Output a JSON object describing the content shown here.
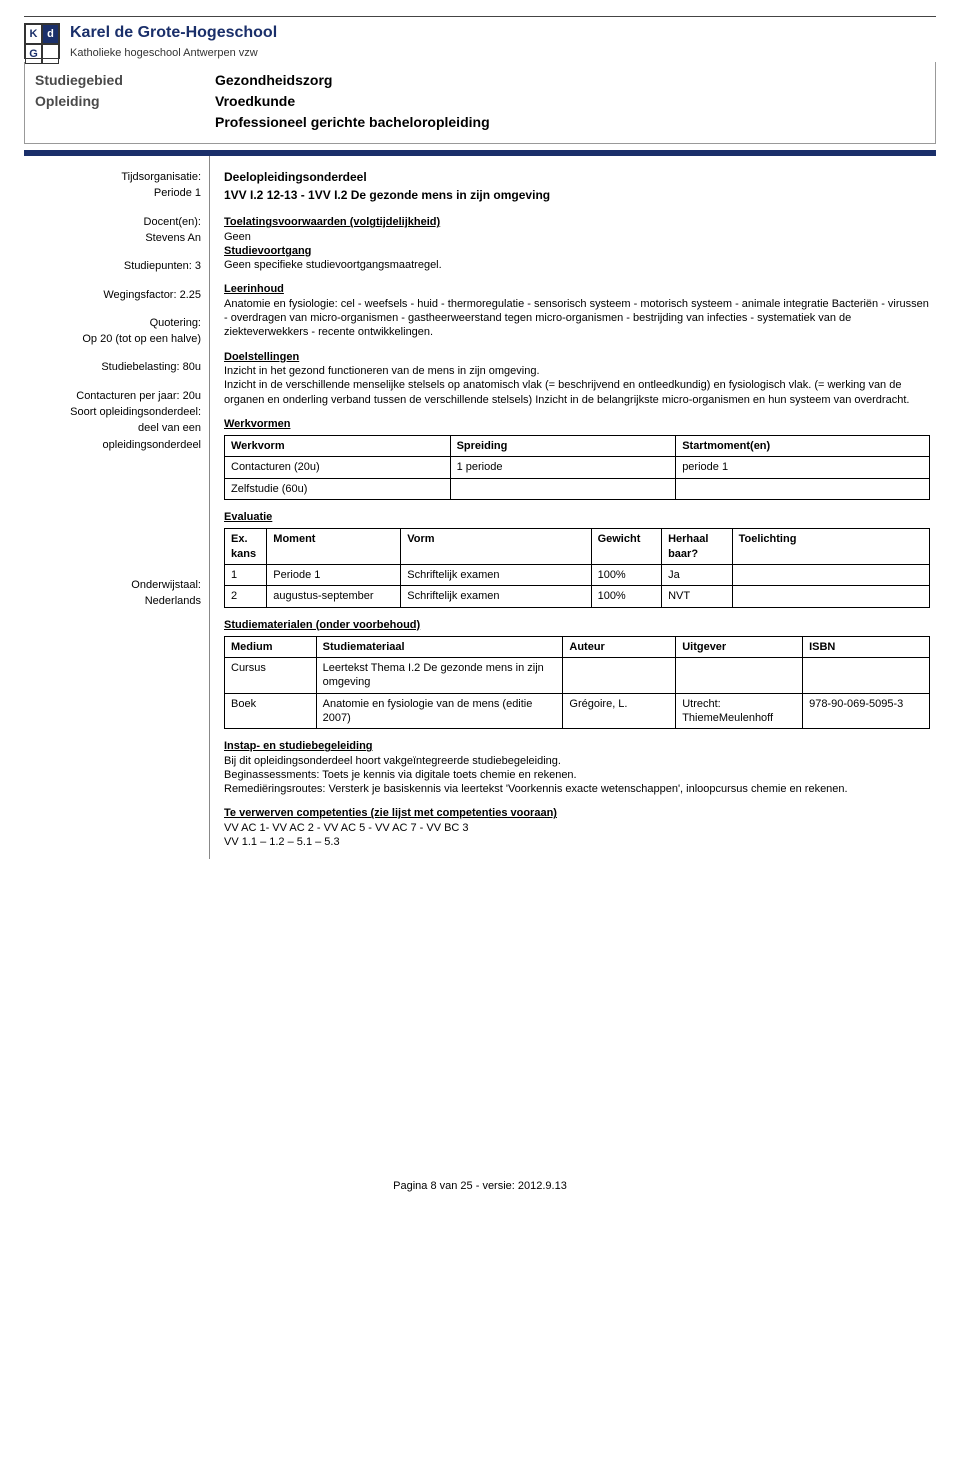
{
  "header": {
    "institution": "Karel de Grote-Hogeschool",
    "subtitle": "Katholieke hogeschool Antwerpen vzw",
    "logo_letters": [
      "K",
      "d",
      "G",
      ""
    ],
    "divider_color": "#1a2f6a"
  },
  "topblock": {
    "left_labels": [
      "Studiegebied",
      "Opleiding"
    ],
    "right_values": [
      "Gezondheidszorg",
      "Vroedkunde",
      "Professioneel gerichte bacheloropleiding"
    ]
  },
  "left": {
    "tijdsorg_label": "Tijdsorganisatie:",
    "periode": "Periode 1",
    "docent_label": "Docent(en):",
    "docent": "Stevens An",
    "studiepunten": "Studiepunten: 3",
    "wegingsfactor": "Wegingsfactor: 2.25",
    "quotering_label": "Quotering:",
    "quotering": "Op 20 (tot op een halve)",
    "studiebelasting": "Studiebelasting: 80u",
    "contacturen": "Contacturen per jaar:  20u",
    "soort_label": "Soort opleidingsonderdeel:",
    "soort1": "deel van een",
    "soort2": "opleidingsonderdeel",
    "onderwijstaal_label": "Onderwijstaal:",
    "onderwijstaal": "Nederlands"
  },
  "main": {
    "deel_label": "Deelopleidingsonderdeel",
    "course_code": "1VV I.2 12-13 - 1VV I.2 De gezonde mens in zijn omgeving",
    "toelating_label": "Toelatingsvoorwaarden (volgtijdelijkheid)",
    "toelating_text": "Geen",
    "studievoortgang_label": "Studievoortgang",
    "studievoortgang_text": "Geen specifieke studievoortgangsmaatregel.",
    "leerinhoud_label": "Leerinhoud",
    "leerinhoud_text": "Anatomie en fysiologie: cel - weefsels - huid - thermoregulatie - sensorisch systeem - motorisch systeem - animale integratie Bacteriën - virussen - overdragen van micro-organismen - gastheerweerstand tegen micro-organismen - bestrijding van infecties - systematiek van de ziekteverwekkers - recente ontwikkelingen.",
    "doelstellingen_label": "Doelstellingen",
    "doelstellingen_text": "Inzicht in het gezond functioneren van de mens in zijn omgeving.\nInzicht in de verschillende menselijke stelsels op anatomisch vlak (= beschrijvend en ontleedkundig) en fysiologisch vlak. (= werking van de organen en onderling verband tussen de verschillende stelsels) Inzicht in de belangrijkste micro-organismen en hun systeem van overdracht.",
    "werkvormen_label": "Werkvormen",
    "evaluatie_label": "Evaluatie",
    "studiemat_label": "Studiematerialen (onder voorbehoud)",
    "instap_label": "Instap- en studiebegeleiding",
    "instap_text": "Bij dit opleidingsonderdeel hoort vakgeïntegreerde studiebegeleiding.\nBeginassessments: Toets je kennis via digitale toets chemie en rekenen.\nRemediëringsroutes: Versterk je basiskennis via leertekst 'Voorkennis exacte wetenschappen', inloopcursus chemie en rekenen.",
    "comp_label": "Te verwerven competenties (zie lijst met competenties vooraan)",
    "comp_text1": "VV AC 1- VV AC 2 - VV AC 5 - VV AC 7 - VV BC 3",
    "comp_text2": "VV 1.1 – 1.2 – 5.1 – 5.3"
  },
  "werkvormen_table": {
    "headers": [
      "Werkvorm",
      "Spreiding",
      "Startmoment(en)"
    ],
    "rows": [
      [
        "Contacturen (20u)",
        "1 periode",
        "periode 1"
      ],
      [
        "Zelfstudie (60u)",
        "",
        ""
      ]
    ],
    "col_widths": [
      "32%",
      "32%",
      "36%"
    ]
  },
  "evaluatie_table": {
    "headers": [
      "Ex. kans",
      "Moment",
      "Vorm",
      "Gewicht",
      "Herhaal baar?",
      "Toelichting"
    ],
    "rows": [
      [
        "1",
        "Periode 1",
        "Schriftelijk examen",
        "100%",
        "Ja",
        ""
      ],
      [
        "2",
        "augustus-september",
        "Schriftelijk examen",
        "100%",
        "NVT",
        ""
      ]
    ],
    "col_widths": [
      "6%",
      "19%",
      "27%",
      "10%",
      "10%",
      "28%"
    ]
  },
  "studiemat_table": {
    "headers": [
      "Medium",
      "Studiemateriaal",
      "Auteur",
      "Uitgever",
      "ISBN"
    ],
    "rows": [
      [
        "Cursus",
        "Leertekst Thema I.2 De gezonde mens in zijn omgeving",
        "",
        "",
        ""
      ],
      [
        "Boek",
        "Anatomie en fysiologie van de mens (editie 2007)",
        "Grégoire, L.",
        "Utrecht: ThiemeMeulenhoff",
        "978-90-069-5095-3"
      ]
    ],
    "col_widths": [
      "13%",
      "35%",
      "16%",
      "18%",
      "18%"
    ]
  },
  "footer": {
    "text": "Pagina 8 van 25   -   versie: 2012.9.13"
  }
}
